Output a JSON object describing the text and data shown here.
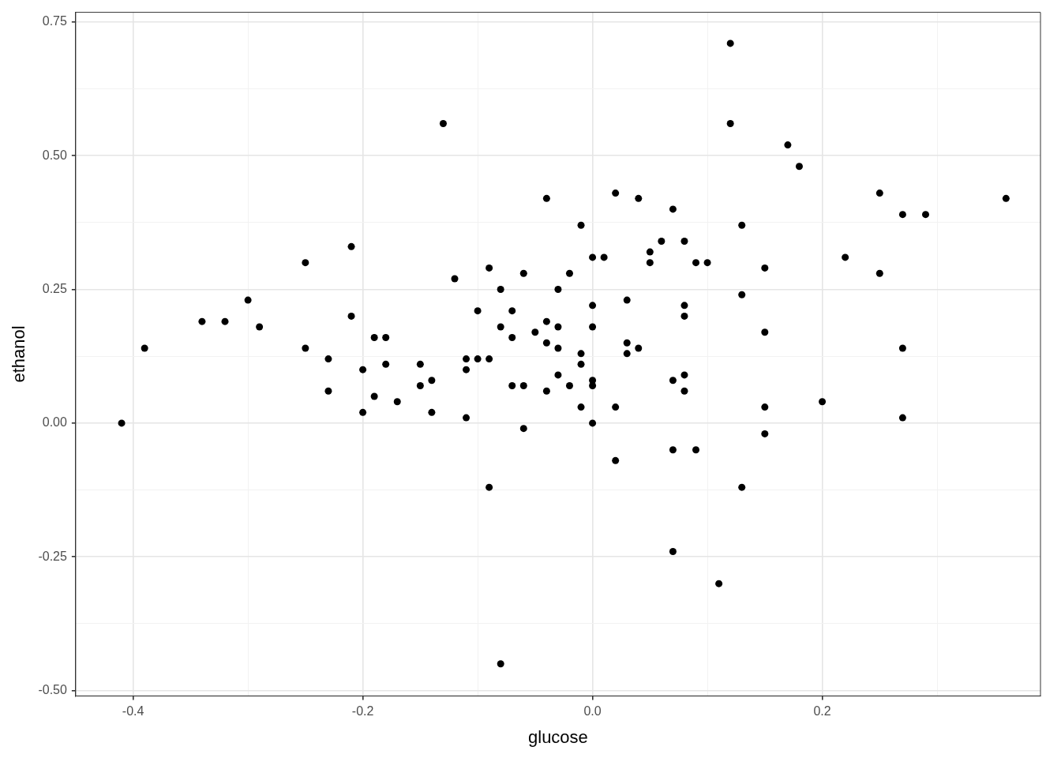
{
  "chart_data": {
    "type": "scatter",
    "xlabel": "glucose",
    "ylabel": "ethanol",
    "xlim": [
      -0.45,
      0.39
    ],
    "ylim": [
      -0.51,
      0.768
    ],
    "xticks": [
      {
        "value": -0.4,
        "label": "-0.4"
      },
      {
        "value": -0.3,
        "label": null
      },
      {
        "value": -0.2,
        "label": "-0.2"
      },
      {
        "value": -0.1,
        "label": null
      },
      {
        "value": 0,
        "label": "0.0"
      },
      {
        "value": 0.1,
        "label": null
      },
      {
        "value": 0.2,
        "label": "0.2"
      },
      {
        "value": 0.3,
        "label": null
      }
    ],
    "yticks": [
      {
        "value": -0.5,
        "label": "-0.50"
      },
      {
        "value": -0.375,
        "label": null
      },
      {
        "value": -0.25,
        "label": "-0.25"
      },
      {
        "value": -0.125,
        "label": null
      },
      {
        "value": 0,
        "label": "0.00"
      },
      {
        "value": 0.125,
        "label": null
      },
      {
        "value": 0.25,
        "label": "0.25"
      },
      {
        "value": 0.375,
        "label": null
      },
      {
        "value": 0.5,
        "label": "0.50"
      },
      {
        "value": 0.625,
        "label": null
      },
      {
        "value": 0.75,
        "label": "0.75"
      }
    ],
    "grid": true,
    "legend": false,
    "marker": "circle",
    "series": [
      {
        "color": "#000000",
        "x": [
          -0.41,
          -0.39,
          -0.34,
          -0.32,
          -0.3,
          -0.29,
          -0.25,
          -0.25,
          -0.23,
          -0.23,
          -0.21,
          -0.21,
          -0.2,
          -0.2,
          -0.19,
          -0.19,
          -0.18,
          -0.18,
          -0.17,
          -0.15,
          -0.15,
          -0.14,
          -0.14,
          -0.13,
          -0.12,
          -0.11,
          -0.11,
          -0.11,
          -0.1,
          -0.1,
          -0.09,
          -0.09,
          -0.09,
          -0.08,
          -0.08,
          -0.08,
          -0.07,
          -0.07,
          -0.07,
          -0.06,
          -0.06,
          -0.06,
          -0.05,
          -0.04,
          -0.04,
          -0.04,
          -0.04,
          -0.03,
          -0.03,
          -0.03,
          -0.03,
          -0.02,
          -0.02,
          -0.01,
          -0.01,
          -0.01,
          -0.01,
          0.0,
          0.0,
          0.0,
          0.0,
          0.0,
          0.0,
          0.01,
          0.02,
          0.02,
          0.02,
          0.03,
          0.03,
          0.03,
          0.04,
          0.04,
          0.05,
          0.05,
          0.06,
          0.07,
          0.07,
          0.07,
          0.07,
          0.08,
          0.08,
          0.08,
          0.08,
          0.08,
          0.09,
          0.09,
          0.1,
          0.11,
          0.12,
          0.12,
          0.13,
          0.13,
          0.13,
          0.15,
          0.15,
          0.15,
          0.15,
          0.17,
          0.18,
          0.2,
          0.22,
          0.25,
          0.25,
          0.27,
          0.27,
          0.27,
          0.29,
          0.36
        ],
        "values": [
          0.0,
          0.14,
          0.19,
          0.19,
          0.23,
          0.18,
          0.3,
          0.14,
          0.12,
          0.06,
          0.33,
          0.2,
          0.1,
          0.02,
          0.16,
          0.05,
          0.16,
          0.11,
          0.04,
          0.11,
          0.07,
          0.08,
          0.02,
          0.56,
          0.27,
          0.12,
          0.1,
          0.01,
          0.21,
          0.12,
          0.29,
          0.12,
          -0.12,
          0.25,
          0.18,
          -0.45,
          0.21,
          0.16,
          0.07,
          0.28,
          0.07,
          -0.01,
          0.17,
          0.42,
          0.19,
          0.15,
          0.06,
          0.25,
          0.18,
          0.14,
          0.09,
          0.28,
          0.07,
          0.37,
          0.13,
          0.11,
          0.03,
          0.31,
          0.22,
          0.18,
          0.08,
          0.07,
          0.0,
          0.31,
          0.43,
          0.03,
          -0.07,
          0.23,
          0.15,
          0.13,
          0.42,
          0.14,
          0.32,
          0.3,
          0.34,
          0.4,
          0.08,
          -0.05,
          -0.24,
          0.34,
          0.22,
          0.2,
          0.09,
          0.06,
          0.3,
          -0.05,
          0.3,
          -0.3,
          0.71,
          0.56,
          0.37,
          0.24,
          -0.12,
          0.29,
          0.17,
          0.03,
          -0.02,
          0.52,
          0.48,
          0.04,
          0.31,
          0.43,
          0.28,
          0.39,
          0.14,
          0.01,
          0.39,
          0.42
        ]
      }
    ]
  }
}
